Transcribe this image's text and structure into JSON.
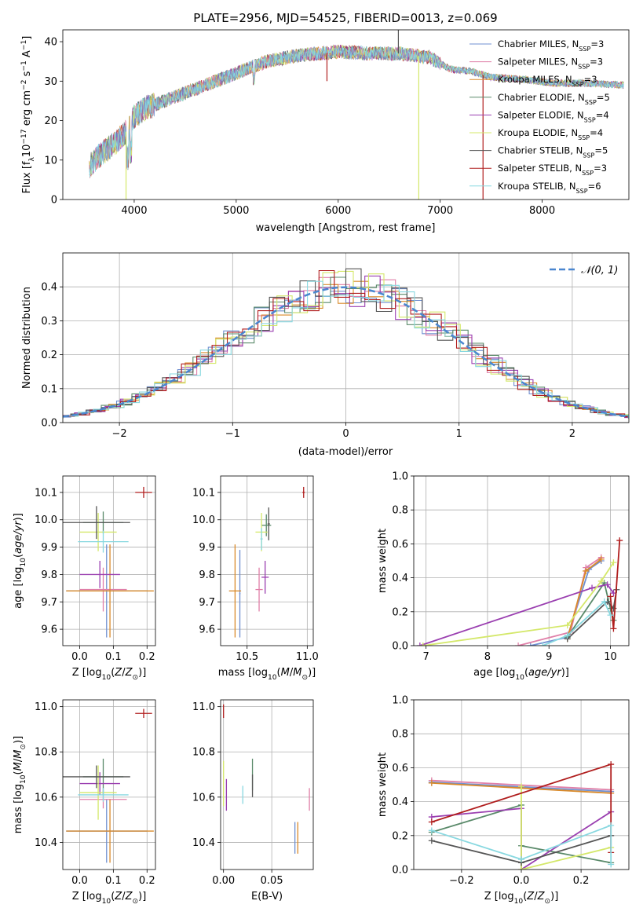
{
  "colors": {
    "chabrier_miles": "#6f8fd0",
    "salpeter_miles": "#e07fa8",
    "kroupa_miles": "#d98a2a",
    "chabrier_elodie": "#5a8a6a",
    "salpeter_elodie": "#9a3fb0",
    "kroupa_elodie": "#d4e86a",
    "chabrier_stelib": "#555555",
    "salpeter_stelib": "#b01e1e",
    "kroupa_stelib": "#88d8e0",
    "normal": "#4a86cf"
  },
  "chart_data": [
    {
      "type": "line",
      "title": "PLATE=2956, MJD=54525, FIBERID=0013, z=0.069",
      "xlabel": "wavelength [Angstrom, rest frame]",
      "ylabel": "Flux [f_λ10^-17 erg cm^-2 s^-1 A^-1]",
      "xlim": [
        3300,
        8850
      ],
      "ylim": [
        0,
        43
      ],
      "xticks": [
        "4000",
        "5000",
        "6000",
        "7000",
        "8000"
      ],
      "yticks": [
        "0",
        "10",
        "20",
        "30",
        "40"
      ],
      "legend_placement": "top-right",
      "legend": [
        {
          "prefix": "Chabrier MILES, N",
          "sub": "SSP",
          "suffix": "=3"
        },
        {
          "prefix": "Salpeter MILES, N",
          "sub": "SSP",
          "suffix": "=3"
        },
        {
          "prefix": "Kroupa MILES, N",
          "sub": "SSP",
          "suffix": "=3"
        },
        {
          "prefix": "Chabrier ELODIE, N",
          "sub": "SSP",
          "suffix": "=5"
        },
        {
          "prefix": "Salpeter ELODIE, N",
          "sub": "SSP",
          "suffix": "=4"
        },
        {
          "prefix": "Kroupa ELODIE, N",
          "sub": "SSP",
          "suffix": "=4"
        },
        {
          "prefix": "Chabrier STELIB, N",
          "sub": "SSP",
          "suffix": "=5"
        },
        {
          "prefix": "Salpeter STELIB, N",
          "sub": "SSP",
          "suffix": "=3"
        },
        {
          "prefix": "Kroupa STELIB, N",
          "sub": "SSP",
          "suffix": "=6"
        }
      ],
      "continuum": [
        [
          3550,
          8
        ],
        [
          3650,
          11
        ],
        [
          3800,
          14
        ],
        [
          3950,
          18
        ],
        [
          4000,
          21
        ],
        [
          4100,
          23
        ],
        [
          4300,
          25
        ],
        [
          4500,
          27
        ],
        [
          4700,
          29
        ],
        [
          4900,
          31
        ],
        [
          5100,
          33
        ],
        [
          5300,
          35
        ],
        [
          5600,
          36.5
        ],
        [
          6000,
          37.5
        ],
        [
          6300,
          37
        ],
        [
          6600,
          37
        ],
        [
          6900,
          36
        ],
        [
          7100,
          33
        ],
        [
          7300,
          32.5
        ],
        [
          7500,
          31
        ],
        [
          7800,
          30.5
        ],
        [
          8100,
          29.5
        ],
        [
          8400,
          29.5
        ],
        [
          8800,
          29
        ]
      ],
      "spikes": [
        [
          3920,
          0,
          "kroupa_elodie"
        ],
        [
          6790,
          0,
          "kroupa_elodie"
        ],
        [
          7420,
          0,
          "salpeter_stelib"
        ],
        [
          6590,
          43,
          "chabrier_stelib"
        ],
        [
          5890,
          30,
          "salpeter_stelib"
        ]
      ]
    },
    {
      "type": "histogram",
      "xlabel": "(data-model)/error",
      "ylabel": "Normed distribution",
      "xlim": [
        -2.5,
        2.5
      ],
      "ylim": [
        0,
        0.5
      ],
      "xticks": [
        "−2",
        "−1",
        "0",
        "1",
        "2"
      ],
      "yticks": [
        "0.0",
        "0.1",
        "0.2",
        "0.3",
        "0.4"
      ],
      "legend": "𝒩(0, 1)",
      "legend_placement": "top-right",
      "bin_width": 0.1
    },
    {
      "type": "scatter",
      "xlabel": "Z [log10(Z/Z⊙)]",
      "ylabel": "age  [log10(age/yr)]",
      "xlim": [
        -0.05,
        0.225
      ],
      "ylim": [
        9.54,
        10.16
      ],
      "xticks": [
        "0.0",
        "0.1",
        "0.2"
      ],
      "yticks": [
        "9.6",
        "9.7",
        "9.8",
        "9.9",
        "10.0",
        "10.1"
      ],
      "points": [
        {
          "series": "chabrier_miles",
          "x": 0.08,
          "y": 9.74,
          "xerr": 0.12,
          "yerr": 0.17
        },
        {
          "series": "salpeter_miles",
          "x": 0.07,
          "y": 9.745,
          "xerr": 0.07,
          "yerr": 0.08
        },
        {
          "series": "kroupa_miles",
          "x": 0.09,
          "y": 9.74,
          "xerr": 0.13,
          "yerr": 0.17
        },
        {
          "series": "chabrier_elodie",
          "x": 0.07,
          "y": 9.99,
          "xerr": 0.06,
          "yerr": 0.04
        },
        {
          "series": "salpeter_elodie",
          "x": 0.06,
          "y": 9.8,
          "xerr": 0.06,
          "yerr": 0.05
        },
        {
          "series": "kroupa_elodie",
          "x": 0.055,
          "y": 9.955,
          "xerr": 0.055,
          "yerr": 0.07
        },
        {
          "series": "chabrier_stelib",
          "x": 0.05,
          "y": 9.99,
          "xerr": 0.1,
          "yerr": 0.06
        },
        {
          "series": "salpeter_stelib",
          "x": 0.19,
          "y": 10.1,
          "xerr": 0.025,
          "yerr": 0.02
        },
        {
          "series": "kroupa_stelib",
          "x": 0.07,
          "y": 9.92,
          "xerr": 0.075,
          "yerr": 0.04
        }
      ]
    },
    {
      "type": "scatter",
      "xlabel": "mass [log10(M/M⊙)]",
      "ylabel": "",
      "xlim": [
        10.28,
        11.05
      ],
      "ylim": [
        9.54,
        10.16
      ],
      "xticks": [
        "10.5",
        "11.0"
      ],
      "yticks": [
        "9.6",
        "9.7",
        "9.8",
        "9.9",
        "10.0",
        "10.1"
      ],
      "points": [
        {
          "series": "chabrier_miles",
          "x": 10.44,
          "y": 9.73,
          "xerr": 0.005,
          "yerr": 0.16
        },
        {
          "series": "salpeter_miles",
          "x": 10.6,
          "y": 9.745,
          "xerr": 0.03,
          "yerr": 0.08
        },
        {
          "series": "kroupa_miles",
          "x": 10.4,
          "y": 9.74,
          "xerr": 0.05,
          "yerr": 0.17
        },
        {
          "series": "chabrier_elodie",
          "x": 10.66,
          "y": 9.98,
          "xerr": 0.04,
          "yerr": 0.04
        },
        {
          "series": "salpeter_elodie",
          "x": 10.65,
          "y": 9.79,
          "xerr": 0.03,
          "yerr": 0.06
        },
        {
          "series": "kroupa_elodie",
          "x": 10.62,
          "y": 9.955,
          "xerr": 0.05,
          "yerr": 0.07
        },
        {
          "series": "chabrier_stelib",
          "x": 10.68,
          "y": 9.985,
          "xerr": 0.01,
          "yerr": 0.06
        },
        {
          "series": "salpeter_stelib",
          "x": 10.97,
          "y": 10.1,
          "xerr": 0.01,
          "yerr": 0.02
        },
        {
          "series": "kroupa_stelib",
          "x": 10.62,
          "y": 9.93,
          "xerr": 0.01,
          "yerr": 0.04
        }
      ]
    },
    {
      "type": "line",
      "xlabel": "age  [log10(age/yr)]",
      "ylabel": "mass weight",
      "xlim": [
        6.8,
        10.3
      ],
      "ylim": [
        0,
        1.0
      ],
      "xticks": [
        "7",
        "8",
        "9",
        "10"
      ],
      "yticks": [
        "0.0",
        "0.2",
        "0.4",
        "0.6",
        "0.8",
        "1.0"
      ],
      "series": [
        {
          "series": "chabrier_miles",
          "points": [
            [
              8.7,
              0.0
            ],
            [
              9.3,
              0.05
            ],
            [
              9.65,
              0.45
            ],
            [
              9.85,
              0.5
            ]
          ]
        },
        {
          "series": "salpeter_miles",
          "points": [
            [
              8.5,
              0.0
            ],
            [
              9.35,
              0.08
            ],
            [
              9.6,
              0.46
            ],
            [
              9.85,
              0.52
            ]
          ]
        },
        {
          "series": "kroupa_miles",
          "points": [
            [
              9.3,
              0.04
            ],
            [
              9.6,
              0.44
            ],
            [
              9.85,
              0.51
            ]
          ]
        },
        {
          "series": "chabrier_elodie",
          "points": [
            [
              9.3,
              0.05
            ],
            [
              9.9,
              0.37
            ],
            [
              10.0,
              0.22
            ],
            [
              10.05,
              0.15
            ]
          ]
        },
        {
          "series": "salpeter_elodie",
          "points": [
            [
              6.9,
              0.0
            ],
            [
              9.7,
              0.34
            ],
            [
              9.95,
              0.36
            ],
            [
              10.05,
              0.31
            ]
          ]
        },
        {
          "series": "kroupa_elodie",
          "points": [
            [
              6.95,
              0.0
            ],
            [
              9.3,
              0.12
            ],
            [
              9.85,
              0.38
            ],
            [
              10.05,
              0.49
            ]
          ]
        },
        {
          "series": "chabrier_stelib",
          "points": [
            [
              9.3,
              0.04
            ],
            [
              9.95,
              0.26
            ],
            [
              10.05,
              0.22
            ],
            [
              10.1,
              0.33
            ]
          ]
        },
        {
          "series": "salpeter_stelib",
          "points": [
            [
              10.0,
              0.29
            ],
            [
              10.05,
              0.1
            ],
            [
              10.15,
              0.62
            ]
          ]
        },
        {
          "series": "kroupa_stelib",
          "points": [
            [
              8.9,
              0.0
            ],
            [
              9.3,
              0.06
            ],
            [
              9.9,
              0.26
            ],
            [
              10.0,
              0.18
            ]
          ]
        }
      ]
    },
    {
      "type": "scatter",
      "xlabel": "Z [log10(Z/Z⊙)]",
      "ylabel": "mass [log10(M/M⊙)]",
      "xlim": [
        -0.05,
        0.225
      ],
      "ylim": [
        10.28,
        11.03
      ],
      "xticks": [
        "0.0",
        "0.1",
        "0.2"
      ],
      "yticks": [
        "10.4",
        "10.6",
        "10.8",
        "11.0"
      ],
      "points": [
        {
          "series": "chabrier_miles",
          "x": 0.08,
          "y": 10.45,
          "xerr": 0.12,
          "yerr": 0.14
        },
        {
          "series": "salpeter_miles",
          "x": 0.07,
          "y": 10.59,
          "xerr": 0.07,
          "yerr": 0.04
        },
        {
          "series": "kroupa_miles",
          "x": 0.09,
          "y": 10.45,
          "xerr": 0.13,
          "yerr": 0.14
        },
        {
          "series": "chabrier_elodie",
          "x": 0.07,
          "y": 10.69,
          "xerr": 0.06,
          "yerr": 0.08
        },
        {
          "series": "salpeter_elodie",
          "x": 0.06,
          "y": 10.66,
          "xerr": 0.06,
          "yerr": 0.05
        },
        {
          "series": "kroupa_elodie",
          "x": 0.055,
          "y": 10.62,
          "xerr": 0.055,
          "yerr": 0.12
        },
        {
          "series": "chabrier_stelib",
          "x": 0.05,
          "y": 10.69,
          "xerr": 0.1,
          "yerr": 0.05
        },
        {
          "series": "salpeter_stelib",
          "x": 0.19,
          "y": 10.97,
          "xerr": 0.025,
          "yerr": 0.02
        },
        {
          "series": "kroupa_stelib",
          "x": 0.07,
          "y": 10.61,
          "xerr": 0.075,
          "yerr": 0.03
        }
      ]
    },
    {
      "type": "scatter",
      "xlabel": "E(B-V)",
      "ylabel": "",
      "xlim": [
        -0.003,
        0.093
      ],
      "ylim": [
        10.28,
        11.03
      ],
      "xticks": [
        "0.00",
        "0.05"
      ],
      "yticks": [
        "10.4",
        "10.6",
        "10.8",
        "11.0"
      ],
      "points": [
        {
          "series": "chabrier_miles",
          "x": 0.074,
          "y": 10.42,
          "xerr": 0,
          "yerr": 0.07
        },
        {
          "series": "salpeter_miles",
          "x": 0.089,
          "y": 10.59,
          "xerr": 0,
          "yerr": 0.05
        },
        {
          "series": "kroupa_miles",
          "x": 0.077,
          "y": 10.42,
          "xerr": 0,
          "yerr": 0.07
        },
        {
          "series": "chabrier_elodie",
          "x": 0.03,
          "y": 10.7,
          "xerr": 0,
          "yerr": 0.07
        },
        {
          "series": "salpeter_elodie",
          "x": 0.003,
          "y": 10.61,
          "xerr": 0,
          "yerr": 0.07
        },
        {
          "series": "kroupa_elodie",
          "x": 0.0,
          "y": 10.66,
          "xerr": 0,
          "yerr": 0.1
        },
        {
          "series": "chabrier_stelib",
          "x": 0.03,
          "y": 10.65,
          "xerr": 0,
          "yerr": 0.05
        },
        {
          "series": "salpeter_stelib",
          "x": 0.0,
          "y": 10.98,
          "xerr": 0,
          "yerr": 0.03
        },
        {
          "series": "kroupa_stelib",
          "x": 0.02,
          "y": 10.61,
          "xerr": 0,
          "yerr": 0.04
        }
      ]
    },
    {
      "type": "line",
      "xlabel": "Z [log10(Z/Z⊙)]",
      "ylabel": "mass weight",
      "xlim": [
        -0.36,
        0.36
      ],
      "ylim": [
        0,
        1.0
      ],
      "xticks": [
        "−0.2",
        "0.0",
        "0.2"
      ],
      "yticks": [
        "0.0",
        "0.2",
        "0.4",
        "0.6",
        "0.8",
        "1.0"
      ],
      "series": [
        {
          "series": "chabrier_miles",
          "points": [
            [
              -0.3,
              0.515
            ],
            [
              0.3,
              0.46
            ]
          ]
        },
        {
          "series": "salpeter_miles",
          "points": [
            [
              -0.3,
              0.525
            ],
            [
              0.3,
              0.47
            ]
          ]
        },
        {
          "series": "kroupa_miles",
          "points": [
            [
              -0.3,
              0.51
            ],
            [
              0.3,
              0.45
            ]
          ]
        },
        {
          "series": "chabrier_elodie",
          "points": [
            [
              -0.3,
              0.22
            ],
            [
              0.0,
              0.38
            ],
            [
              0.0,
              0.14
            ],
            [
              0.3,
              0.04
            ]
          ]
        },
        {
          "series": "salpeter_elodie",
          "points": [
            [
              -0.3,
              0.31
            ],
            [
              0.0,
              0.36
            ],
            [
              0.0,
              0.0
            ],
            [
              0.3,
              0.34
            ]
          ]
        },
        {
          "series": "kroupa_elodie",
          "points": [
            [
              0.0,
              0.49
            ],
            [
              0.0,
              0.0
            ],
            [
              0.3,
              0.13
            ]
          ]
        },
        {
          "series": "chabrier_stelib",
          "points": [
            [
              -0.3,
              0.17
            ],
            [
              0.0,
              0.04
            ],
            [
              0.3,
              0.2
            ]
          ]
        },
        {
          "series": "salpeter_stelib",
          "points": [
            [
              -0.3,
              0.28
            ],
            [
              0.3,
              0.62
            ],
            [
              0.3,
              0.1
            ]
          ]
        },
        {
          "series": "kroupa_stelib",
          "points": [
            [
              -0.3,
              0.23
            ],
            [
              0.0,
              0.06
            ],
            [
              0.3,
              0.26
            ],
            [
              0.3,
              0.03
            ]
          ]
        }
      ]
    }
  ]
}
